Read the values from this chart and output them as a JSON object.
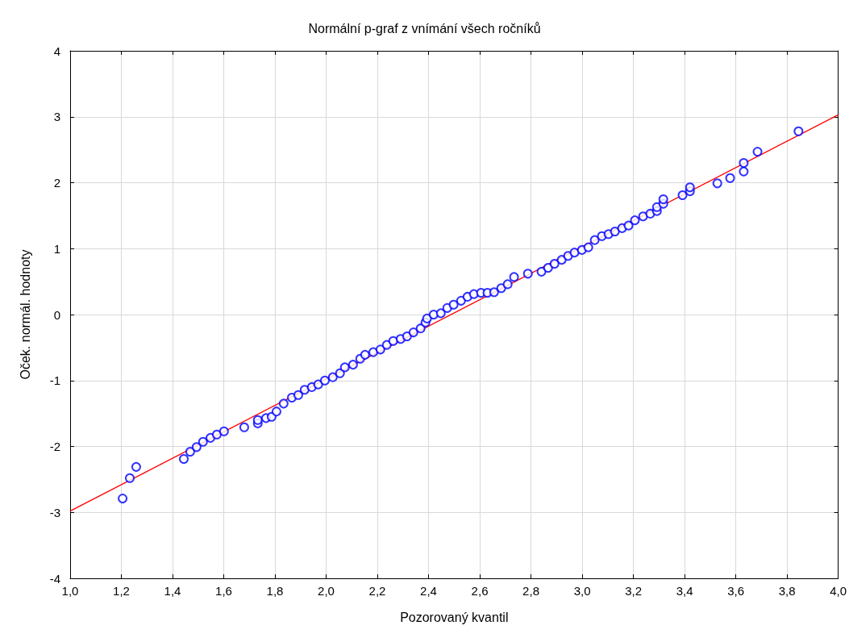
{
  "chart_data": {
    "type": "scatter",
    "title": "Normální p-graf z vnímání všech ročníků",
    "xlabel": "Pozorovaný kvantil",
    "ylabel": "Oček. normál. hodnoty",
    "xlim": [
      1.0,
      4.0
    ],
    "xticks": [
      {
        "value": 1.0,
        "label": "1,0"
      },
      {
        "value": 1.2,
        "label": "1,2"
      },
      {
        "value": 1.4,
        "label": "1,4"
      },
      {
        "value": 1.6,
        "label": "1,6"
      },
      {
        "value": 1.8,
        "label": "1,8"
      },
      {
        "value": 2.0,
        "label": "2,0"
      },
      {
        "value": 2.2,
        "label": "2,2"
      },
      {
        "value": 2.4,
        "label": "2,4"
      },
      {
        "value": 2.6,
        "label": "2,6"
      },
      {
        "value": 2.8,
        "label": "2,8"
      },
      {
        "value": 3.0,
        "label": "3,0"
      },
      {
        "value": 3.2,
        "label": "3,2"
      },
      {
        "value": 3.4,
        "label": "3,4"
      },
      {
        "value": 3.6,
        "label": "3,6"
      },
      {
        "value": 3.8,
        "label": "3,8"
      },
      {
        "value": 4.0,
        "label": "4,0"
      }
    ],
    "ylim": [
      -4,
      4
    ],
    "yticks": [
      -4,
      -3,
      -2,
      -1,
      0,
      1,
      2,
      3,
      4
    ],
    "grid": true,
    "series": [
      {
        "color": "#0000ff",
        "marker": "circle",
        "x": [
          1.205,
          1.233,
          1.258,
          1.444,
          1.469,
          1.494,
          1.519,
          1.548,
          1.573,
          1.601,
          1.68,
          1.733,
          1.733,
          1.765,
          1.787,
          1.806,
          1.834,
          1.866,
          1.891,
          1.916,
          1.944,
          1.969,
          1.995,
          2.026,
          2.054,
          2.073,
          2.105,
          2.133,
          2.152,
          2.184,
          2.212,
          2.237,
          2.262,
          2.291,
          2.316,
          2.341,
          2.369,
          2.388,
          2.394,
          2.42,
          2.448,
          2.473,
          2.498,
          2.527,
          2.552,
          2.577,
          2.605,
          2.63,
          2.656,
          2.684,
          2.709,
          2.734,
          2.788,
          2.841,
          2.867,
          2.892,
          2.92,
          2.945,
          2.97,
          2.999,
          3.024,
          3.049,
          3.077,
          3.103,
          3.128,
          3.156,
          3.181,
          3.206,
          3.238,
          3.266,
          3.292,
          3.292,
          3.317,
          3.317,
          3.392,
          3.421,
          3.421,
          3.528,
          3.578,
          3.631,
          3.631,
          3.685,
          3.845
        ],
        "values": [
          -2.79,
          -2.48,
          -2.31,
          -2.19,
          -2.08,
          -2.01,
          -1.93,
          -1.87,
          -1.82,
          -1.77,
          -1.71,
          -1.65,
          -1.6,
          -1.57,
          -1.55,
          -1.47,
          -1.35,
          -1.26,
          -1.22,
          -1.14,
          -1.1,
          -1.06,
          -1.0,
          -0.95,
          -0.89,
          -0.8,
          -0.76,
          -0.67,
          -0.61,
          -0.57,
          -0.53,
          -0.46,
          -0.4,
          -0.37,
          -0.33,
          -0.27,
          -0.21,
          -0.12,
          -0.06,
          0.0,
          0.02,
          0.1,
          0.15,
          0.21,
          0.27,
          0.31,
          0.33,
          0.33,
          0.34,
          0.4,
          0.46,
          0.57,
          0.62,
          0.65,
          0.71,
          0.77,
          0.83,
          0.89,
          0.94,
          0.98,
          1.02,
          1.13,
          1.19,
          1.22,
          1.26,
          1.31,
          1.35,
          1.43,
          1.49,
          1.53,
          1.57,
          1.63,
          1.68,
          1.75,
          1.81,
          1.87,
          1.93,
          1.99,
          2.07,
          2.17,
          2.3,
          2.47,
          2.78
        ]
      },
      {
        "type": "line",
        "marker": "none",
        "color": "#ff0000",
        "x": [
          1.0,
          4.0
        ],
        "values": [
          -2.98,
          3.03
        ]
      }
    ]
  }
}
